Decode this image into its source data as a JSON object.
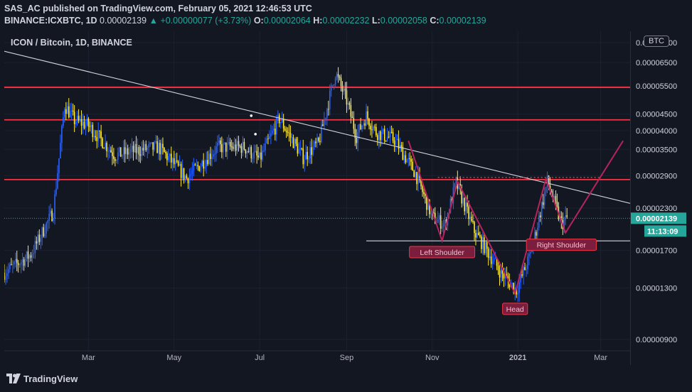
{
  "header": {
    "publisher_line": "SAS_AC published on TradingView.com, February 05, 2021 12:46:53 UTC",
    "symbol": "BINANCE:ICXBTC, 1D",
    "last": "0.00002139",
    "change": "+0.00000077 (+3.73%)",
    "o_label": "O:",
    "o": "0.00002064",
    "h_label": "H:",
    "h": "0.00002232",
    "l_label": "L:",
    "l": "0.00002058",
    "c_label": "C:",
    "c": "0.00002139"
  },
  "chart_title": "ICON / Bitcoin, 1D, BINANCE",
  "currency_badge": "BTC",
  "price_tag": "0.00002139",
  "countdown": "11:13:09",
  "footer": {
    "brand": "TradingView"
  },
  "colors": {
    "background": "#131722",
    "up": "#2962ff",
    "down": "#ffeb3b",
    "resistance": "#f23645",
    "pattern": "#b7245c",
    "trendline": "#d1d4dc",
    "teal": "#26a69a"
  },
  "chart_data": {
    "type": "candlestick",
    "title": "ICON / Bitcoin, 1D, BINANCE",
    "y_scale": "log",
    "y_ticks": [
      "0.00007500",
      "0.00006500",
      "0.00005500",
      "0.00004500",
      "0.00004000",
      "0.00003500",
      "0.00002900",
      "0.00002300",
      "0.00001700",
      "0.00001300",
      "0.00000900"
    ],
    "y_tick_values": [
      7.5e-05,
      6.5e-05,
      5.5e-05,
      4.5e-05,
      4e-05,
      3.5e-05,
      2.9e-05,
      2.3e-05,
      1.7e-05,
      1.3e-05,
      9e-06
    ],
    "x_ticks": [
      "Mar",
      "May",
      "Jul",
      "Sep",
      "Nov",
      "2021",
      "Mar"
    ],
    "x_tick_dates": [
      "2020-03-01",
      "2020-05-01",
      "2020-07-01",
      "2020-09-01",
      "2020-11-01",
      "2021-01-01",
      "2021-03-01"
    ],
    "x_range": [
      "2020-01-01",
      "2021-03-22"
    ],
    "horizontal_levels": [
      5.45e-05,
      4.32e-05,
      2.82e-05
    ],
    "neckline": 1.82e-05,
    "trendline": [
      {
        "date": "2020-01-01",
        "value": 7.05e-05
      },
      {
        "date": "2021-03-22",
        "value": 2.38e-05
      }
    ],
    "price_path": [
      {
        "date": "2020-01-01",
        "close": 1.45e-05
      },
      {
        "date": "2020-01-20",
        "close": 1.65e-05
      },
      {
        "date": "2020-02-05",
        "close": 2.25e-05
      },
      {
        "date": "2020-02-13",
        "close": 4.8e-05
      },
      {
        "date": "2020-02-20",
        "close": 4.3e-05
      },
      {
        "date": "2020-03-01",
        "close": 4.15e-05
      },
      {
        "date": "2020-03-20",
        "close": 3.35e-05
      },
      {
        "date": "2020-04-01",
        "close": 3.45e-05
      },
      {
        "date": "2020-04-20",
        "close": 3.55e-05
      },
      {
        "date": "2020-05-10",
        "close": 2.85e-05
      },
      {
        "date": "2020-06-01",
        "close": 3.55e-05
      },
      {
        "date": "2020-06-20",
        "close": 3.55e-05
      },
      {
        "date": "2020-07-01",
        "close": 3.25e-05
      },
      {
        "date": "2020-07-15",
        "close": 4.35e-05
      },
      {
        "date": "2020-08-01",
        "close": 3.3e-05
      },
      {
        "date": "2020-08-12",
        "close": 3.65e-05
      },
      {
        "date": "2020-08-24",
        "close": 6.05e-05
      },
      {
        "date": "2020-09-01",
        "close": 4.95e-05
      },
      {
        "date": "2020-09-08",
        "close": 3.85e-05
      },
      {
        "date": "2020-09-15",
        "close": 4.45e-05
      },
      {
        "date": "2020-09-22",
        "close": 3.95e-05
      },
      {
        "date": "2020-10-05",
        "close": 3.75e-05
      },
      {
        "date": "2020-10-20",
        "close": 2.95e-05
      },
      {
        "date": "2020-11-01",
        "close": 2.15e-05
      },
      {
        "date": "2020-11-10",
        "close": 2.05e-05
      },
      {
        "date": "2020-11-18",
        "close": 2.75e-05
      },
      {
        "date": "2020-12-01",
        "close": 1.95e-05
      },
      {
        "date": "2020-12-20",
        "close": 1.45e-05
      },
      {
        "date": "2020-12-31",
        "close": 1.28e-05
      },
      {
        "date": "2021-01-10",
        "close": 1.65e-05
      },
      {
        "date": "2021-01-22",
        "close": 2.78e-05
      },
      {
        "date": "2021-02-01",
        "close": 2.05e-05
      },
      {
        "date": "2021-02-05",
        "close": 2.139e-05
      }
    ],
    "pattern": {
      "points": [
        {
          "date": "2020-10-15",
          "value": 3.72e-05
        },
        {
          "date": "2020-11-08",
          "value": 1.82e-05
        },
        {
          "date": "2020-11-19",
          "value": 2.78e-05
        },
        {
          "date": "2020-12-30",
          "value": 1.25e-05
        },
        {
          "date": "2021-01-21",
          "value": 2.83e-05
        },
        {
          "date": "2021-02-04",
          "value": 1.93e-05
        },
        {
          "date": "2021-03-17",
          "value": 3.72e-05
        }
      ],
      "labels": [
        {
          "text": "Left Shoulder",
          "date": "2020-11-08",
          "value": 1.68e-05
        },
        {
          "text": "Head",
          "date": "2020-12-30",
          "value": 1.12e-05
        },
        {
          "text": "Right Shoulder",
          "date": "2021-02-01",
          "value": 1.77e-05
        }
      ]
    },
    "current_price": 2.139e-05
  }
}
